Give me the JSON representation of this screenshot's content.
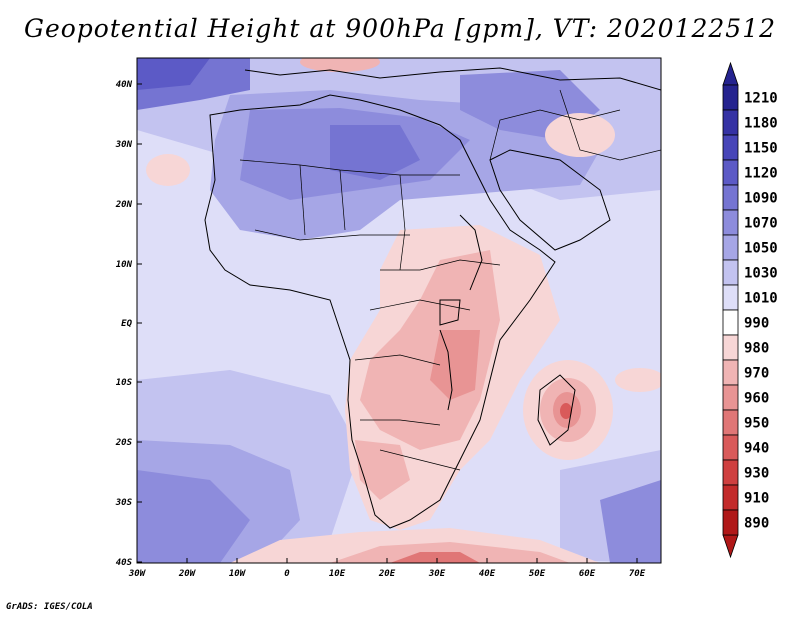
{
  "map": {
    "title": "Geopotential Height at 900hPa [gpm], VT: 2020122512",
    "credit": "GrADS: IGES/COLA",
    "lat_ticks": [
      "40N",
      "30N",
      "20N",
      "10N",
      "EQ",
      "10S",
      "20S",
      "30S",
      "40S"
    ],
    "lon_ticks": [
      "30W",
      "20W",
      "10W",
      "0",
      "10E",
      "20E",
      "30E",
      "40E",
      "50E",
      "60E",
      "70E"
    ],
    "colorbar": {
      "labels": [
        "1210",
        "1180",
        "1150",
        "1120",
        "1090",
        "1070",
        "1050",
        "1030",
        "1010",
        "990",
        "980",
        "970",
        "960",
        "950",
        "940",
        "930",
        "910",
        "890"
      ],
      "colors": [
        "#25238f",
        "#3532a4",
        "#4745b8",
        "#5c5ac6",
        "#7574d2",
        "#8d8cdc",
        "#a6a6e6",
        "#c3c3f0",
        "#dedef8",
        "#ffffff",
        "#f7d6d6",
        "#f0b4b4",
        "#e89494",
        "#e07676",
        "#d95a5a",
        "#cf4040",
        "#c32b2b",
        "#b01818"
      ]
    },
    "colors": {
      "ocean_pale": "#dedef8",
      "ocean_mid": "#c3c3f0",
      "sahara": "#a6a6e6",
      "deep_blue": "#5c5ac6",
      "land_pink": "#f7d6d6",
      "land_red": "#f0b4b4",
      "low_core": "#d95a5a",
      "frame": "#000000"
    }
  }
}
